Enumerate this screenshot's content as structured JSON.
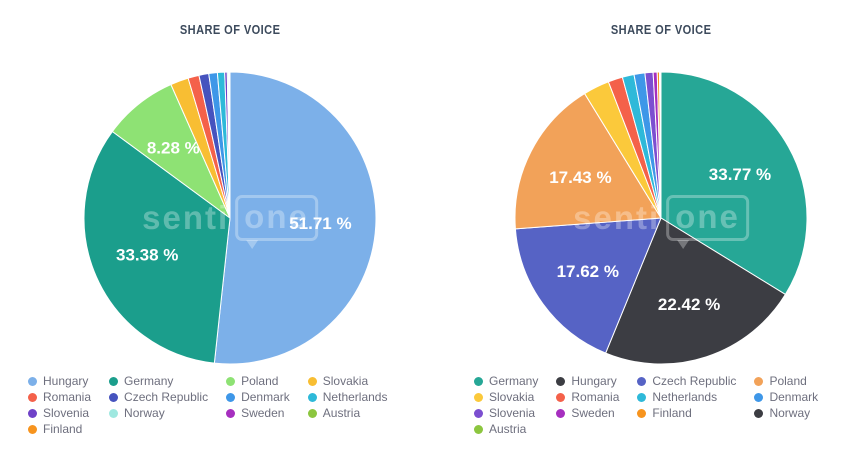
{
  "watermark": {
    "prefix": "senti",
    "suffix": "one"
  },
  "chart_data": [
    {
      "type": "pie",
      "title": "SHARE OF VOICE",
      "legend_position": "bottom",
      "start_angle_deg": 0,
      "labels": [
        "Hungary",
        "Germany",
        "Poland",
        "Slovakia",
        "Romania",
        "Czech Republic",
        "Denmark",
        "Netherlands",
        "Slovenia",
        "Norway",
        "Sweden",
        "Austria",
        "Finland"
      ],
      "values": [
        51.71,
        33.38,
        8.28,
        2.0,
        1.22,
        1.08,
        0.95,
        0.8,
        0.28,
        0.14,
        0.08,
        0.05,
        0.03
      ],
      "value_labels": [
        "51.71 %",
        "33.38 %",
        "8.28 %",
        "",
        "",
        "",
        "",
        "",
        "",
        "",
        "",
        "",
        ""
      ],
      "colors": [
        "#7CB0E9",
        "#1B9E8C",
        "#8EE274",
        "#F8BE33",
        "#F4614A",
        "#4653BE",
        "#3E97E8",
        "#2EB9D9",
        "#6F42C8",
        "#9FE8E0",
        "#A62FBF",
        "#8CC63F",
        "#F7941E"
      ]
    },
    {
      "type": "pie",
      "title": "SHARE OF VOICE",
      "legend_position": "bottom",
      "start_angle_deg": 0,
      "labels": [
        "Germany",
        "Hungary",
        "Czech Republic",
        "Poland",
        "Slovakia",
        "Romania",
        "Netherlands",
        "Denmark",
        "Slovenia",
        "Sweden",
        "Finland",
        "Norway",
        "Austria"
      ],
      "values": [
        33.77,
        22.42,
        17.62,
        17.43,
        2.9,
        1.6,
        1.3,
        1.2,
        0.9,
        0.45,
        0.25,
        0.11,
        0.05
      ],
      "value_labels": [
        "33.77 %",
        "22.42 %",
        "17.62 %",
        "17.43 %",
        "",
        "",
        "",
        "",
        "",
        "",
        "",
        "",
        ""
      ],
      "colors": [
        "#26A796",
        "#3C3D43",
        "#5663C5",
        "#F2A259",
        "#FBC93B",
        "#F4614A",
        "#2EB9D9",
        "#3E97E8",
        "#7C4FD0",
        "#A62FBF",
        "#F7941E",
        "#3C3D43",
        "#8CC63F"
      ]
    }
  ]
}
